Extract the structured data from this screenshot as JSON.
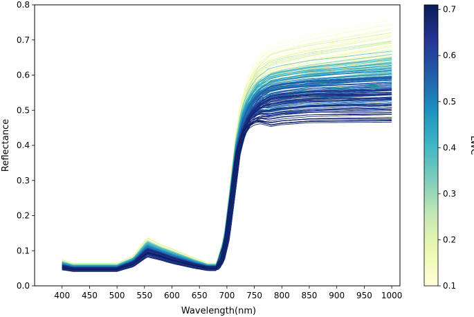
{
  "chart_data": {
    "type": "line",
    "title": "",
    "xlabel": "Wavelength(nm)",
    "ylabel": "Reflectance",
    "xlim": [
      350,
      1015
    ],
    "ylim": [
      0.0,
      0.8
    ],
    "xticks": [
      400,
      450,
      500,
      550,
      600,
      650,
      700,
      750,
      800,
      850,
      900,
      950,
      1000
    ],
    "yticks": [
      0.0,
      0.1,
      0.2,
      0.3,
      0.4,
      0.5,
      0.6,
      0.7,
      0.8
    ],
    "ytick_labels": [
      "0.0",
      "0.1",
      "0.2",
      "0.3",
      "0.4",
      "0.5",
      "0.6",
      "0.7",
      "0.8"
    ],
    "grid": false,
    "x_range": [
      400,
      1000
    ],
    "colormap": {
      "name": "YlGnBu",
      "stops": [
        "#ffffd9",
        "#edf8b1",
        "#c7e9b4",
        "#7fcdbb",
        "#41b6c4",
        "#1d91c0",
        "#225ea8",
        "#253494",
        "#081d58"
      ]
    },
    "colorbar": {
      "label": "LWC",
      "range": [
        0.1,
        0.71
      ],
      "ticks": [
        0.1,
        0.2,
        0.3,
        0.4,
        0.5,
        0.6,
        0.7
      ],
      "tick_labels": [
        "0.1",
        "0.2",
        "0.3",
        "0.4",
        "0.5",
        "0.6",
        "0.7"
      ]
    },
    "series_profile": {
      "description_points_nm": [
        400,
        420,
        500,
        530,
        555,
        580,
        600,
        640,
        665,
        680,
        690,
        700,
        710,
        720,
        730,
        740,
        750,
        760,
        780,
        800,
        850,
        900,
        950,
        1000
      ],
      "low_lwc_reference": [
        0.07,
        0.06,
        0.06,
        0.08,
        0.13,
        0.11,
        0.1,
        0.075,
        0.06,
        0.06,
        0.08,
        0.15,
        0.28,
        0.43,
        0.53,
        0.58,
        0.61,
        0.63,
        0.645,
        0.655,
        0.675,
        0.69,
        0.705,
        0.72
      ],
      "high_lwc_reference": [
        0.05,
        0.045,
        0.045,
        0.06,
        0.09,
        0.08,
        0.07,
        0.055,
        0.048,
        0.048,
        0.065,
        0.13,
        0.25,
        0.37,
        0.43,
        0.46,
        0.475,
        0.485,
        0.49,
        0.495,
        0.5,
        0.5,
        0.5,
        0.5
      ],
      "count": 160
    }
  }
}
